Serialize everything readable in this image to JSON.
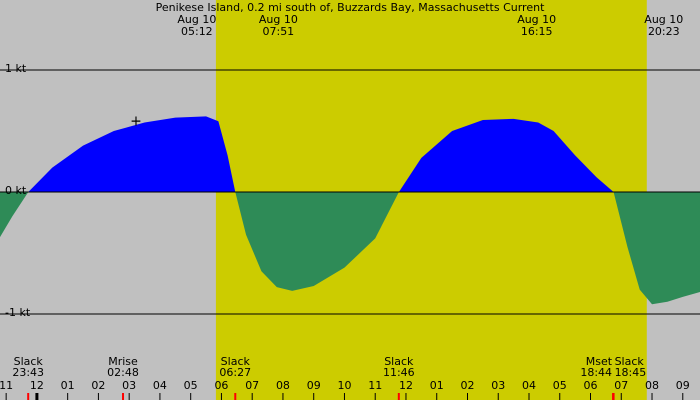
{
  "chart_data": {
    "type": "area",
    "title": "Penikese Island, 0.2 mi south of, Buzzards Bay, Massachusetts Current",
    "x": [
      -1.2,
      -0.8,
      -0.28,
      0.5,
      1.5,
      2.5,
      3.5,
      4.5,
      5.5,
      5.9,
      6.2,
      6.45,
      6.8,
      7.3,
      7.8,
      8.3,
      9,
      10,
      11,
      11.77,
      12.5,
      13.5,
      14.5,
      15.5,
      16.3,
      16.8,
      17.5,
      18.2,
      18.75,
      19.2,
      19.6,
      20,
      20.5,
      21,
      21.56
    ],
    "values": [
      -0.37,
      -0.2,
      0,
      0.2,
      0.38,
      0.5,
      0.57,
      0.61,
      0.62,
      0.58,
      0.3,
      0,
      -0.35,
      -0.65,
      -0.78,
      -0.81,
      -0.77,
      -0.62,
      -0.38,
      0,
      0.28,
      0.5,
      0.59,
      0.6,
      0.57,
      0.5,
      0.3,
      0.12,
      0,
      -0.45,
      -0.8,
      -0.92,
      -0.9,
      -0.86,
      -0.82
    ],
    "colors": {
      "positive": "#0000ff",
      "negative": "#2e8b57",
      "background": "#c0c0c0",
      "day": "#cccc00"
    },
    "xlim": [
      -1.2,
      21.56
    ],
    "ylim": [
      -1.705,
      1.574
    ],
    "yticks": [
      {
        "value": 1,
        "label": "1 kt"
      },
      {
        "value": 0,
        "label": "0 kt"
      },
      {
        "value": -1,
        "label": "-1 kt"
      }
    ],
    "xticks": [
      {
        "value": -1,
        "label": "11"
      },
      {
        "value": 0,
        "label": "12"
      },
      {
        "value": 1,
        "label": "01"
      },
      {
        "value": 2,
        "label": "02"
      },
      {
        "value": 3,
        "label": "03"
      },
      {
        "value": 4,
        "label": "04"
      },
      {
        "value": 5,
        "label": "05"
      },
      {
        "value": 6,
        "label": "06"
      },
      {
        "value": 7,
        "label": "07"
      },
      {
        "value": 8,
        "label": "08"
      },
      {
        "value": 9,
        "label": "09"
      },
      {
        "value": 10,
        "label": "10"
      },
      {
        "value": 11,
        "label": "11"
      },
      {
        "value": 12,
        "label": "12"
      },
      {
        "value": 13,
        "label": "01"
      },
      {
        "value": 14,
        "label": "02"
      },
      {
        "value": 15,
        "label": "03"
      },
      {
        "value": 16,
        "label": "04"
      },
      {
        "value": 17,
        "label": "05"
      },
      {
        "value": 18,
        "label": "06"
      },
      {
        "value": 19,
        "label": "07"
      },
      {
        "value": 20,
        "label": "08"
      },
      {
        "value": 21,
        "label": "09"
      }
    ],
    "day_band": [
      5.82,
      19.83
    ],
    "marker": {
      "x": 3.22,
      "y": 0.58
    },
    "top_labels": [
      {
        "x": 5.2,
        "date": "Aug 10",
        "time": "05:12"
      },
      {
        "x": 7.85,
        "date": "Aug 10",
        "time": "07:51"
      },
      {
        "x": 16.25,
        "date": "Aug 10",
        "time": "16:15"
      },
      {
        "x": 20.383,
        "date": "Aug 10",
        "time": "20:23"
      }
    ],
    "events": [
      {
        "x": -0.283,
        "name": "Slack",
        "time": "23:43"
      },
      {
        "x": 2.8,
        "name": "Mrise",
        "time": "02:48"
      },
      {
        "x": 6.45,
        "name": "Slack",
        "time": "06:27"
      },
      {
        "x": 11.767,
        "name": "Slack",
        "time": "11:46"
      },
      {
        "x": 18.733,
        "name": "Mset",
        "time": "18:44"
      },
      {
        "x": 18.75,
        "name": "Slack",
        "time": "18:45"
      }
    ]
  }
}
